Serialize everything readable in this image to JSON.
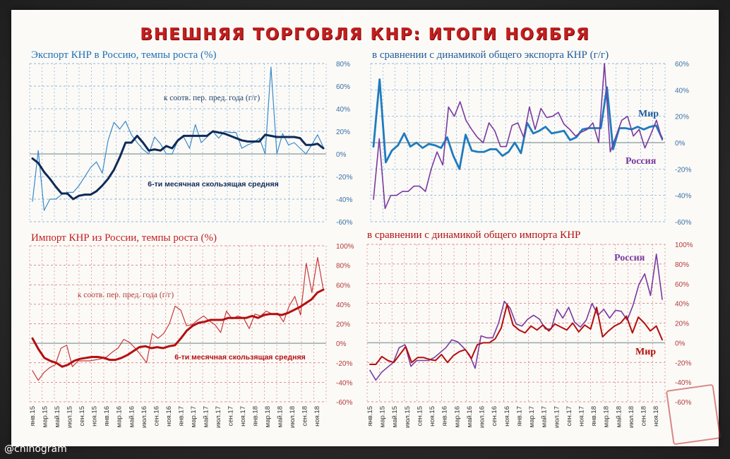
{
  "header": {
    "title": "ВНЕШНЯЯ ТОРГОВЛЯ КНР: ИТОГИ НОЯБРЯ"
  },
  "footer": {
    "handle": "@chinogram"
  },
  "colors": {
    "blue_thin": "#3a8ac9",
    "blue_thick": "#0f2a57",
    "blue_mid": "#1e7bbf",
    "red_thin": "#c63a3a",
    "red_thick": "#b30f0f",
    "purple": "#7a3aa0"
  },
  "x_labels": [
    "янв.15",
    "мар.15",
    "май.15",
    "июл.15",
    "сен.15",
    "ноя.15",
    "янв.16",
    "мар.16",
    "май.16",
    "июл.16",
    "сен.16",
    "ноя.16",
    "янв.17",
    "мар.17",
    "май.17",
    "июл.17",
    "сен.17",
    "ноя.17",
    "янв.18",
    "мар.18",
    "май.18",
    "июл.18",
    "сен.18",
    "ноя.18"
  ],
  "chart_data": [
    {
      "type": "line",
      "title": "Экспорт КНР в Россию, темпы роста (%)",
      "ylim": [
        -60,
        80
      ],
      "yticks": [
        "80%",
        "60%",
        "40%",
        "20%",
        "0%",
        "-20%",
        "-40%",
        "-60%"
      ],
      "annotations": [
        "к соотв. пер. пред. года (г/г)",
        "6-ти месячная скользящая средняя"
      ],
      "series": [
        {
          "values": [
            -42,
            3,
            -50,
            -40,
            -40,
            -36,
            -34,
            -34,
            -28,
            -20,
            -12,
            -7,
            -17,
            12,
            28,
            22,
            29,
            17,
            10,
            4,
            0,
            15,
            9,
            0,
            0,
            12,
            15,
            5,
            26,
            10,
            15,
            20,
            14,
            20,
            19,
            19,
            5,
            8,
            10,
            14,
            0,
            77,
            0,
            18,
            8,
            10,
            5,
            0,
            8,
            17,
            6
          ]
        },
        {
          "values": [
            -4,
            -8,
            -16,
            -22,
            -29,
            -35,
            -35,
            -40,
            -37,
            -36,
            -36,
            -33,
            -28,
            -22,
            -14,
            -3,
            10,
            10,
            16,
            10,
            3,
            4,
            3,
            7,
            5,
            12,
            16,
            16,
            16,
            16,
            16,
            20,
            19,
            18,
            16,
            14,
            12,
            11,
            11,
            11,
            17,
            16,
            15,
            15,
            15,
            15,
            14,
            8,
            8,
            9,
            5
          ]
        }
      ]
    },
    {
      "type": "line",
      "title": "в сравнении с динамикой общего экспорта КНР (г/г)",
      "ylim": [
        -60,
        60
      ],
      "yticks": [
        "60%",
        "40%",
        "20%",
        "0%",
        "-20%",
        "-40%",
        "-60%"
      ],
      "series": [
        {
          "name": "Мир",
          "values": [
            -3,
            48,
            -15,
            -6,
            -2,
            7,
            -3,
            0,
            -4,
            -1,
            -2,
            -4,
            4,
            -10,
            -20,
            6,
            -6,
            -7,
            -7,
            -5,
            -5,
            -10,
            -7,
            0,
            -8,
            15,
            7,
            9,
            12,
            7,
            8,
            9,
            2,
            4,
            10,
            11,
            11,
            11,
            42,
            -5,
            11,
            11,
            10,
            12,
            10,
            12,
            13,
            3
          ]
        },
        {
          "name": "Россия",
          "values": [
            -43,
            3,
            -50,
            -40,
            -40,
            -37,
            -37,
            -33,
            -33,
            -37,
            -20,
            -7,
            -17,
            27,
            20,
            31,
            17,
            10,
            4,
            0,
            15,
            9,
            -3,
            -3,
            13,
            15,
            4,
            27,
            10,
            26,
            19,
            20,
            23,
            14,
            10,
            5,
            8,
            10,
            15,
            0,
            77,
            -7,
            5,
            17,
            20,
            5,
            10,
            -4,
            6,
            17,
            2
          ]
        }
      ]
    },
    {
      "type": "line",
      "title": "Импорт КНР из России, темпы роста (%)",
      "ylim": [
        -60,
        100
      ],
      "yticks": [
        "100%",
        "80%",
        "60%",
        "40%",
        "20%",
        "0%",
        "-20%",
        "-40%",
        "-60%"
      ],
      "annotations": [
        "к соотв. пер. пред. года (г/г)",
        "6-ти месячная скользящая средняя"
      ],
      "series": [
        {
          "values": [
            -28,
            -38,
            -30,
            -25,
            -22,
            -5,
            -2,
            -24,
            -18,
            -18,
            -18,
            -17,
            -16,
            -14,
            -9,
            -5,
            4,
            1,
            -5,
            -12,
            -20,
            10,
            5,
            10,
            20,
            38,
            34,
            18,
            19,
            24,
            28,
            23,
            19,
            11,
            33,
            25,
            28,
            26,
            15,
            30,
            28,
            33,
            30,
            31,
            22,
            38,
            48,
            29,
            82,
            52,
            88,
            55
          ]
        },
        {
          "values": [
            5,
            -6,
            -15,
            -18,
            -20,
            -24,
            -22,
            -18,
            -16,
            -15,
            -14,
            -14,
            -15,
            -17,
            -17,
            -15,
            -12,
            -8,
            -4,
            -3,
            -5,
            -4,
            -5,
            -3,
            -2,
            5,
            13,
            18,
            21,
            22,
            24,
            24,
            24,
            26,
            26,
            26,
            26,
            28,
            26,
            29,
            30,
            30,
            29,
            31,
            34,
            37,
            41,
            45,
            52,
            55
          ]
        }
      ]
    },
    {
      "type": "line",
      "title": "в сравнении с динамикой общего импорта КНР",
      "ylim": [
        -60,
        100
      ],
      "yticks": [
        "100%",
        "80%",
        "60%",
        "40%",
        "20%",
        "0%",
        "-20%",
        "-40%",
        "-60%"
      ],
      "series": [
        {
          "name": "Россия",
          "values": [
            -28,
            -38,
            -30,
            -25,
            -20,
            -5,
            -2,
            -24,
            -18,
            -18,
            -18,
            -15,
            -10,
            -5,
            3,
            1,
            -5,
            -12,
            -26,
            7,
            5,
            5,
            20,
            42,
            35,
            19,
            17,
            24,
            28,
            24,
            14,
            14,
            34,
            25,
            36,
            21,
            16,
            23,
            40,
            28,
            34,
            25,
            33,
            32,
            23,
            38,
            59,
            70,
            48,
            90,
            44
          ]
        },
        {
          "name": "Мир",
          "values": [
            -22,
            -22,
            -14,
            -18,
            -20,
            -12,
            -4,
            -20,
            -15,
            -15,
            -17,
            -18,
            -12,
            -20,
            -13,
            -9,
            -7,
            -16,
            -2,
            0,
            0,
            4,
            15,
            39,
            18,
            13,
            10,
            17,
            13,
            18,
            12,
            19,
            16,
            13,
            20,
            11,
            18,
            14,
            36,
            6,
            12,
            17,
            20,
            27,
            10,
            26,
            20,
            12,
            17,
            3
          ]
        }
      ]
    }
  ]
}
